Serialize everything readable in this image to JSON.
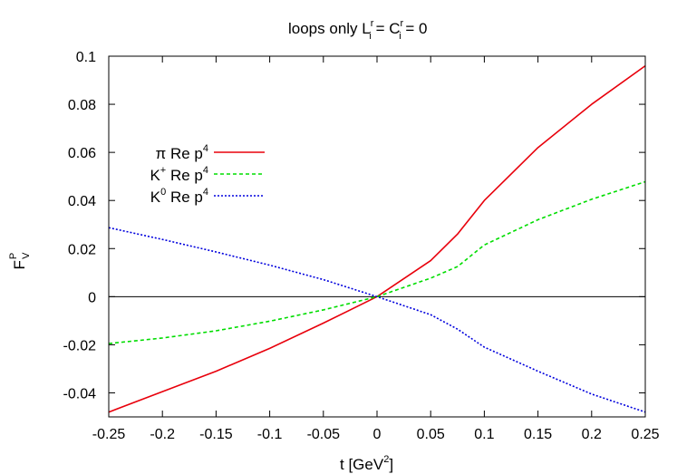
{
  "chart_data": {
    "type": "line",
    "title": "loops only L",
    "title_sup": "r",
    "title_sub": "i",
    "title_mid": " = C",
    "title_sup2": "r",
    "title_sub2": "i",
    "title_end": " = 0",
    "xlabel": "t   [GeV",
    "xlabel_sup": "2",
    "xlabel_end": "]",
    "ylabel": "F",
    "ylabel_sup": "P",
    "ylabel_sub": "V",
    "xlim": [
      -0.25,
      0.25
    ],
    "ylim": [
      -0.05,
      0.1
    ],
    "xticks": [
      "-0.25",
      "-0.2",
      "-0.15",
      "-0.1",
      "-0.05",
      "0",
      "0.05",
      "0.1",
      "0.15",
      "0.2",
      "0.25"
    ],
    "yticks": [
      "-0.04",
      "-0.02",
      "0",
      "0.02",
      "0.04",
      "0.06",
      "0.08",
      "0.1"
    ],
    "legend_position": "upper-left",
    "series": [
      {
        "name": "π Re p",
        "name_sup": "4",
        "color": "#e8000b",
        "style": "solid",
        "x": [
          -0.25,
          -0.2,
          -0.15,
          -0.1,
          -0.05,
          0,
          0.05,
          0.075,
          0.1,
          0.15,
          0.2,
          0.25
        ],
        "y": [
          -0.048,
          -0.0395,
          -0.031,
          -0.0215,
          -0.011,
          0.0,
          0.015,
          0.026,
          0.04,
          0.062,
          0.08,
          0.096
        ]
      },
      {
        "name": "K",
        "name_sup": "+",
        "name_end": " Re p",
        "name_end_sup": "4",
        "color": "#00dd00",
        "style": "dashed",
        "x": [
          -0.25,
          -0.2,
          -0.15,
          -0.1,
          -0.05,
          0,
          0.05,
          0.075,
          0.1,
          0.15,
          0.2,
          0.25
        ],
        "y": [
          -0.0195,
          -0.0172,
          -0.0142,
          -0.0102,
          -0.0055,
          0.0,
          0.0077,
          0.0125,
          0.0215,
          0.032,
          0.0405,
          0.0478
        ]
      },
      {
        "name": "K",
        "name_sup": "0",
        "name_end": " Re p",
        "name_end_sup": "4",
        "color": "#0000dd",
        "style": "dotted",
        "x": [
          -0.25,
          -0.2,
          -0.15,
          -0.1,
          -0.05,
          0,
          0.05,
          0.075,
          0.1,
          0.15,
          0.2,
          0.25
        ],
        "y": [
          0.0287,
          0.0238,
          0.0186,
          0.0131,
          0.0071,
          0.0,
          -0.0075,
          -0.0135,
          -0.021,
          -0.031,
          -0.0405,
          -0.048
        ]
      }
    ]
  }
}
